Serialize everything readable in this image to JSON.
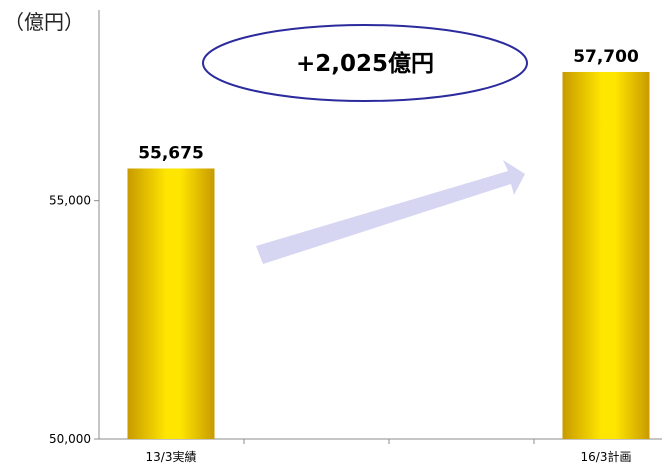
{
  "chart_data": {
    "type": "bar",
    "unit_label": "（億円）",
    "categories": [
      "13/3実績",
      "16/3計画"
    ],
    "values": [
      55675,
      57700
    ],
    "data_labels": [
      "55,675",
      "57,700"
    ],
    "ylim": [
      50000,
      59000
    ],
    "yticks": [
      50000,
      55000
    ],
    "ytick_labels": [
      "50,000",
      "55,000"
    ],
    "annotation": "+2,025億円",
    "bar_color": "#ffe600",
    "bar_edge_color": "#c89a00",
    "arrow_color": "#d6d6f3",
    "callout_border_color": "#2b2b9e",
    "grid": false
  }
}
